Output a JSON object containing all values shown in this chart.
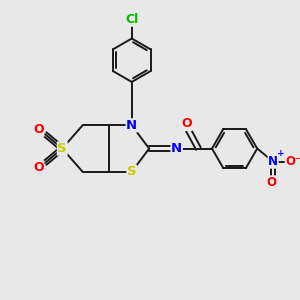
{
  "bg_color": "#e8e8e8",
  "atom_colors": {
    "C": "#1a1a1a",
    "N": "#0000ff",
    "O": "#ff0000",
    "S": "#cccc00",
    "Cl": "#00bb00",
    "H": "#1a1a1a"
  },
  "bond_color": "#1a1a1a",
  "bond_width": 1.4,
  "font_size": 8.5,
  "fig_bg": "#e8e8e8",
  "xlim": [
    0,
    10
  ],
  "ylim": [
    0,
    10
  ]
}
